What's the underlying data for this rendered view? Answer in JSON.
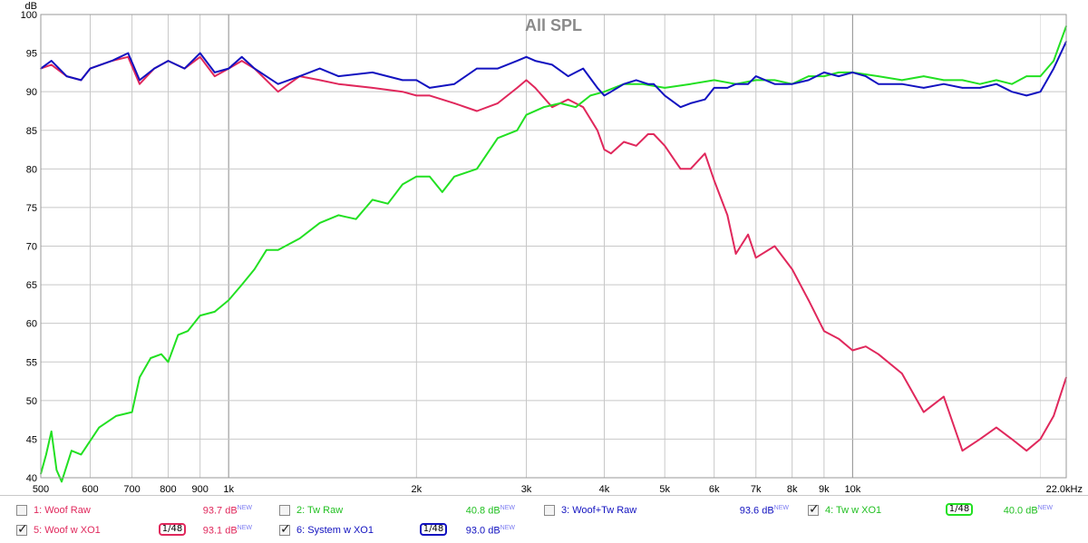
{
  "chart_data": {
    "type": "line",
    "title": "All SPL",
    "ylabel": "dB",
    "x_scale": "log",
    "xlim": [
      500,
      22000
    ],
    "ylim": [
      40,
      100
    ],
    "x_ticks": [
      500,
      600,
      700,
      800,
      900,
      1000,
      2000,
      3000,
      4000,
      5000,
      6000,
      7000,
      8000,
      9000,
      10000,
      22000
    ],
    "x_tick_labels": [
      "500",
      "600",
      "700",
      "800",
      "900",
      "1k",
      "2k",
      "3k",
      "4k",
      "5k",
      "6k",
      "7k",
      "8k",
      "9k",
      "10k",
      "22.0kHz"
    ],
    "y_ticks": [
      40,
      45,
      50,
      55,
      60,
      65,
      70,
      75,
      80,
      85,
      90,
      95,
      100
    ],
    "grid": true,
    "series": [
      {
        "name": "Woof w XO1",
        "color": "#e0285c",
        "x": [
          500,
          520,
          550,
          580,
          600,
          650,
          690,
          720,
          760,
          800,
          850,
          900,
          950,
          1000,
          1050,
          1100,
          1200,
          1300,
          1400,
          1500,
          1700,
          1900,
          2000,
          2100,
          2300,
          2500,
          2700,
          2900,
          3000,
          3100,
          3300,
          3500,
          3700,
          3900,
          4000,
          4100,
          4300,
          4500,
          4700,
          4800,
          5000,
          5300,
          5500,
          5800,
          6000,
          6300,
          6500,
          6800,
          7000,
          7500,
          8000,
          8500,
          9000,
          9500,
          10000,
          10500,
          11000,
          12000,
          13000,
          14000,
          15000,
          16000,
          17000,
          18000,
          19000,
          20000,
          21000,
          22000
        ],
        "y": [
          93,
          93.5,
          92,
          91.5,
          93,
          94,
          94.5,
          91,
          93,
          94,
          93,
          94.5,
          92,
          93,
          94,
          93,
          90,
          92,
          91.5,
          91,
          90.5,
          90,
          89.5,
          89.5,
          88.5,
          87.5,
          88.5,
          90.5,
          91.5,
          90.5,
          88,
          89,
          88,
          85,
          82.5,
          82,
          83.5,
          83,
          84.5,
          84.5,
          83,
          80,
          80,
          82,
          78.5,
          74,
          69,
          71.5,
          68.5,
          70,
          67,
          63,
          59,
          58,
          56.5,
          57,
          56,
          53.5,
          48.5,
          50.5,
          43.5,
          45,
          46.5,
          45,
          43.5,
          45,
          48,
          53
        ]
      },
      {
        "name": "Tw w XO1",
        "color": "#22e022",
        "x": [
          500,
          510,
          520,
          530,
          540,
          560,
          580,
          620,
          660,
          700,
          720,
          750,
          780,
          800,
          830,
          860,
          900,
          950,
          1000,
          1050,
          1100,
          1150,
          1200,
          1300,
          1400,
          1500,
          1600,
          1700,
          1800,
          1900,
          2000,
          2100,
          2200,
          2300,
          2500,
          2700,
          2900,
          3000,
          3200,
          3400,
          3600,
          3800,
          4000,
          4300,
          4600,
          5000,
          5500,
          6000,
          6500,
          7000,
          7500,
          8000,
          8500,
          9000,
          9500,
          10000,
          11000,
          12000,
          13000,
          14000,
          15000,
          16000,
          17000,
          18000,
          19000,
          20000,
          21000,
          22000
        ],
        "y": [
          40.5,
          43,
          46,
          41,
          39.5,
          43.5,
          43,
          46.5,
          48,
          48.5,
          53,
          55.5,
          56,
          55,
          58.5,
          59,
          61,
          61.5,
          63,
          65,
          67,
          69.5,
          69.5,
          71,
          73,
          74,
          73.5,
          76,
          75.5,
          78,
          79,
          79,
          77,
          79,
          80,
          84,
          85,
          87,
          88,
          88.5,
          88,
          89.5,
          90,
          91,
          91,
          90.5,
          91,
          91.5,
          91,
          91.5,
          91.5,
          91,
          92,
          92,
          92.5,
          92.5,
          92,
          91.5,
          92,
          91.5,
          91.5,
          91,
          91.5,
          91,
          92,
          92,
          94,
          98.5
        ]
      },
      {
        "name": "System w XO1",
        "color": "#1212c0",
        "x": [
          500,
          520,
          550,
          580,
          600,
          650,
          690,
          720,
          760,
          800,
          850,
          900,
          950,
          1000,
          1050,
          1100,
          1200,
          1300,
          1400,
          1500,
          1700,
          1900,
          2000,
          2100,
          2300,
          2500,
          2700,
          2900,
          3000,
          3100,
          3300,
          3500,
          3700,
          3900,
          4000,
          4100,
          4300,
          4500,
          4700,
          4800,
          5000,
          5300,
          5500,
          5800,
          6000,
          6300,
          6500,
          6800,
          7000,
          7500,
          8000,
          8500,
          9000,
          9500,
          10000,
          10500,
          11000,
          12000,
          13000,
          14000,
          15000,
          16000,
          17000,
          18000,
          19000,
          20000,
          21000,
          22000
        ],
        "y": [
          93,
          94,
          92,
          91.5,
          93,
          94,
          95,
          91.5,
          93,
          94,
          93,
          95,
          92.5,
          93,
          94.5,
          93,
          91,
          92,
          93,
          92,
          92.5,
          91.5,
          91.5,
          90.5,
          91,
          93,
          93,
          94,
          94.5,
          94,
          93.5,
          92,
          93,
          90.5,
          89.5,
          90,
          91,
          91.5,
          91,
          91,
          89.5,
          88,
          88.5,
          89,
          90.5,
          90.5,
          91,
          91,
          92,
          91,
          91,
          91.5,
          92.5,
          92,
          92.5,
          92,
          91,
          91,
          90.5,
          91,
          90.5,
          90.5,
          91,
          90,
          89.5,
          90,
          93,
          96.5
        ]
      }
    ]
  },
  "legend": [
    {
      "id": "1",
      "label": "1: Woof Raw",
      "value": "93.7 dB",
      "sup": "NEW",
      "color": "#e0285c",
      "checked": false,
      "smoothing": ""
    },
    {
      "id": "2",
      "label": "2: Tw Raw",
      "value": "40.8 dB",
      "sup": "NEW",
      "color": "#22c022",
      "checked": false,
      "smoothing": ""
    },
    {
      "id": "3",
      "label": "3: Woof+Tw Raw",
      "value": "93.6 dB",
      "sup": "NEW",
      "color": "#1212c0",
      "checked": false,
      "smoothing": ""
    },
    {
      "id": "4",
      "label": "4: Tw w XO1",
      "value": "40.0 dB",
      "sup": "NEW",
      "color": "#22c022",
      "checked": true,
      "smoothing": "1/48"
    },
    {
      "id": "5",
      "label": "5: Woof w XO1",
      "value": "93.1 dB",
      "sup": "NEW",
      "color": "#e0285c",
      "checked": true,
      "smoothing": "1/48"
    },
    {
      "id": "6",
      "label": "6: System w XO1",
      "value": "93.0 dB",
      "sup": "NEW",
      "color": "#1212c0",
      "checked": true,
      "smoothing": "1/48"
    }
  ]
}
